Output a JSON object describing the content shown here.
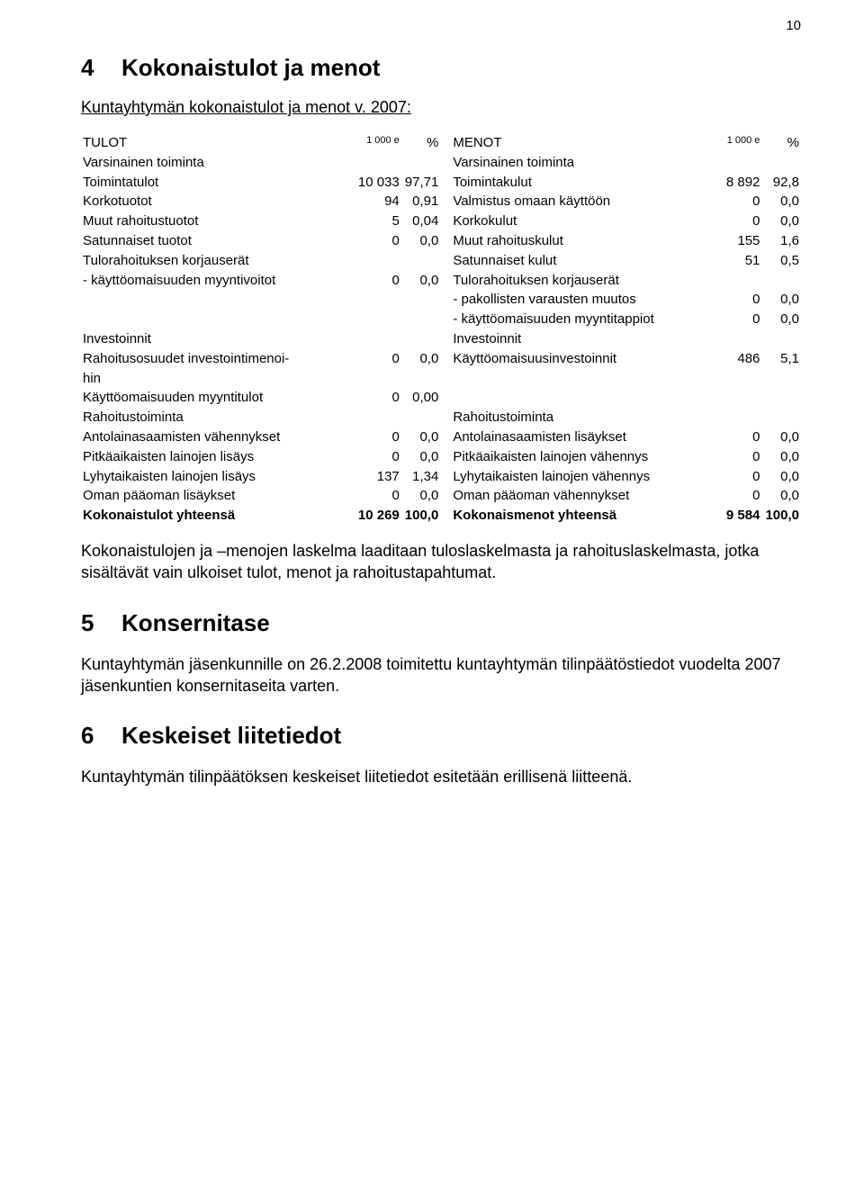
{
  "page_number": "10",
  "h4_number": "4",
  "h4_title": "Kokonaistulot ja menot",
  "sub1": "Kuntayhtymän kokonaistulot ja menot v. 2007:",
  "left_header": "TULOT",
  "left_unit": "1 000 e",
  "left_pct": "%",
  "right_header": "MENOT",
  "right_unit": "1 000 e",
  "right_pct": "%",
  "l_vars": "Varsinainen toiminta",
  "r_vars": "Varsinainen toiminta",
  "rows1": [
    {
      "ll": "Toimintatulot",
      "lv": "10 033",
      "lp": "97,71",
      "rl": "Toimintakulut",
      "rv": "8 892",
      "rp": "92,8"
    },
    {
      "ll": "Korkotuotot",
      "lv": "94",
      "lp": "0,91",
      "rl": "Valmistus omaan käyttöön",
      "rv": "0",
      "rp": "0,0"
    },
    {
      "ll": "Muut rahoitustuotot",
      "lv": "5",
      "lp": "0,04",
      "rl": "Korkokulut",
      "rv": "0",
      "rp": "0,0"
    },
    {
      "ll": "Satunnaiset tuotot",
      "lv": "0",
      "lp": "0,0",
      "rl": "Muut rahoituskulut",
      "rv": "155",
      "rp": "1,6"
    },
    {
      "ll": "Tulorahoituksen korjauserät",
      "lv": "",
      "lp": "",
      "rl": "Satunnaiset kulut",
      "rv": "51",
      "rp": "0,5"
    },
    {
      "ll": " - käyttöomaisuuden myyntivoitot",
      "lv": "0",
      "lp": "0,0",
      "rl": "Tulorahoituksen korjauserät",
      "rv": "",
      "rp": ""
    },
    {
      "ll": "",
      "lv": "",
      "lp": "",
      "rl": " - pakollisten varausten muutos",
      "rv": "0",
      "rp": "0,0"
    },
    {
      "ll": "",
      "lv": "",
      "lp": "",
      "rl": " - käyttöomaisuuden myyntitappiot",
      "rv": "0",
      "rp": "0,0"
    }
  ],
  "inv_left": "Investoinnit",
  "inv_right": "Investoinnit",
  "rows2": [
    {
      "ll": "Rahoitusosuudet investointimenoi-",
      "lv": "0",
      "lp": "0,0",
      "rl": "Käyttöomaisuusinvestoinnit",
      "rv": "486",
      "rp": "5,1"
    },
    {
      "ll": "hin",
      "lv": "",
      "lp": "",
      "rl": "",
      "rv": "",
      "rp": ""
    },
    {
      "ll": "Käyttöomaisuuden myyntitulot",
      "lv": "0",
      "lp": "0,00",
      "rl": "",
      "rv": "",
      "rp": ""
    }
  ],
  "fin_left": "Rahoitustoiminta",
  "fin_right": "Rahoitustoiminta",
  "rows3": [
    {
      "ll": "Antolainasaamisten vähennykset",
      "lv": "0",
      "lp": "0,0",
      "rl": "Antolainasaamisten lisäykset",
      "rv": "0",
      "rp": "0,0"
    },
    {
      "ll": "Pitkäaikaisten lainojen lisäys",
      "lv": "0",
      "lp": "0,0",
      "rl": "Pitkäaikaisten lainojen vähennys",
      "rv": "0",
      "rp": "0,0"
    },
    {
      "ll": "Lyhytaikaisten lainojen lisäys",
      "lv": "137",
      "lp": "1,34",
      "rl": "Lyhytaikaisten lainojen vähennys",
      "rv": "0",
      "rp": "0,0"
    },
    {
      "ll": "Oman pääoman lisäykset",
      "lv": "0",
      "lp": "0,0",
      "rl": "Oman pääoman vähennykset",
      "rv": "0",
      "rp": "0,0"
    }
  ],
  "total_left_lbl": "Kokonaistulot yhteensä",
  "total_left_val": "10 269",
  "total_left_pct": "100,0",
  "total_right_lbl": "Kokonaismenot yhteensä",
  "total_right_val": "9 584",
  "total_right_pct": "100,0",
  "para1": "Kokonaistulojen ja –menojen laskelma laaditaan tuloslaskelmasta ja rahoituslaskelmasta, jotka sisältävät vain ulkoiset tulot, menot ja rahoitustapahtumat.",
  "h5_number": "5",
  "h5_title": "Konsernitase",
  "para2": "Kuntayhtymän jäsenkunnille on 26.2.2008 toimitettu kuntayhtymän tilinpäätöstiedot vuodelta 2007 jäsenkuntien konsernitaseita varten.",
  "h6_number": "6",
  "h6_title": "Keskeiset liitetiedot",
  "para3": "Kuntayhtymän tilinpäätöksen keskeiset liitetiedot esitetään erillisenä liitteenä."
}
